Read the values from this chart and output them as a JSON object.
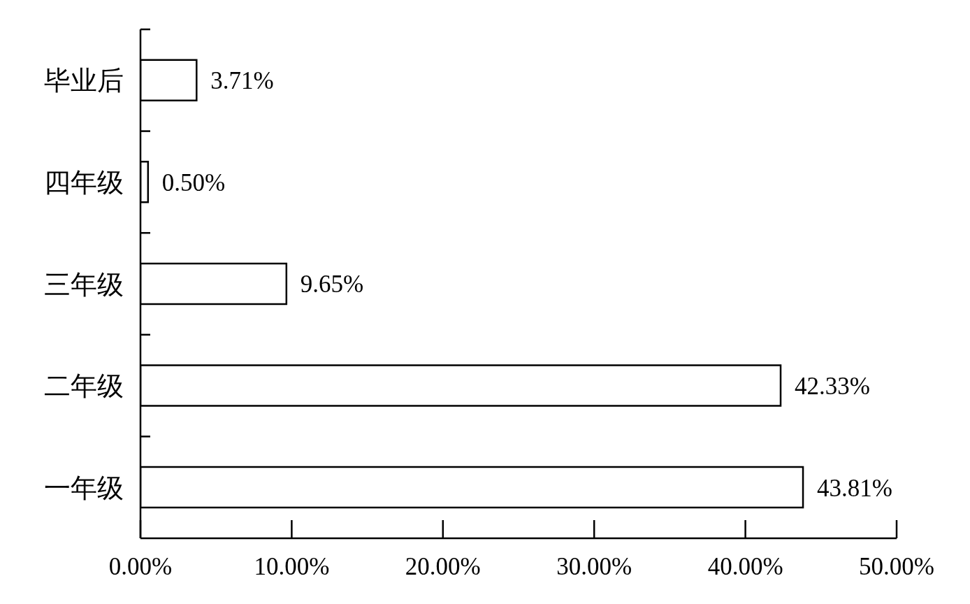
{
  "chart_data": {
    "type": "bar",
    "orientation": "horizontal",
    "categories": [
      "毕业后",
      "四年级",
      "三年级",
      "二年级",
      "一年级"
    ],
    "values": [
      3.71,
      0.5,
      9.65,
      42.33,
      43.81
    ],
    "value_labels": [
      "3.71%",
      "0.50%",
      "9.65%",
      "42.33%",
      "43.81%"
    ],
    "color": "#ffffff",
    "xlim": [
      0,
      50
    ],
    "xticks": [
      {
        "value": 0,
        "label": "0.00%"
      },
      {
        "value": 10,
        "label": "10.00%"
      },
      {
        "value": 20,
        "label": "20.00%"
      },
      {
        "value": 30,
        "label": "30.00%"
      },
      {
        "value": 40,
        "label": "40.00%"
      },
      {
        "value": 50,
        "label": "50.00%"
      }
    ]
  }
}
